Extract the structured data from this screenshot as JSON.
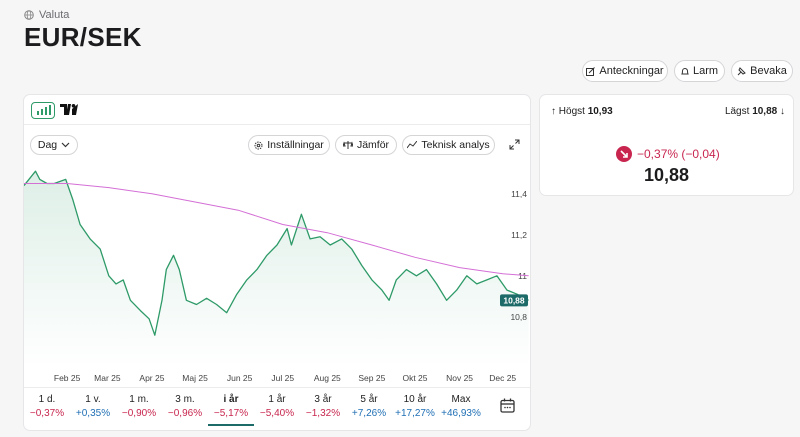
{
  "header": {
    "category": "Valuta",
    "title": "EUR/SEK"
  },
  "actions": [
    "Anteckningar",
    "Larm",
    "Bevaka"
  ],
  "toolbar": {
    "interval": "Dag",
    "buttons": [
      "Inställningar",
      "Jämför",
      "Teknisk analys"
    ]
  },
  "stats": {
    "high_label": "Högst",
    "high": "10,93",
    "low_label": "Lägst",
    "low": "10,88",
    "change": "−0,37% (−0,04)",
    "price": "10,88"
  },
  "chart_data": {
    "type": "line",
    "x": [
      1,
      9,
      12,
      17,
      22,
      30,
      35,
      40,
      47,
      54,
      60,
      65,
      70,
      75,
      82,
      88,
      92,
      97,
      100,
      105,
      109,
      114,
      121,
      128,
      135,
      142,
      149,
      156,
      163,
      170,
      177,
      184,
      187,
      194,
      200,
      207,
      214,
      222,
      229,
      236,
      243,
      250,
      255,
      260,
      267,
      274,
      281,
      288,
      295,
      302,
      309,
      316,
      323,
      330,
      337,
      344,
      349,
      352
    ],
    "series": [
      {
        "color": "#2e9a68",
        "values": [
          11.44,
          11.51,
          11.47,
          11.45,
          11.45,
          11.47,
          11.37,
          11.25,
          11.18,
          11.13,
          11.0,
          10.96,
          10.98,
          10.88,
          10.83,
          10.79,
          10.71,
          10.88,
          11.03,
          11.1,
          11.03,
          10.88,
          10.86,
          10.89,
          10.86,
          10.82,
          10.91,
          10.98,
          11.03,
          11.1,
          11.15,
          11.23,
          11.15,
          11.3,
          11.18,
          11.19,
          11.15,
          11.18,
          11.13,
          11.05,
          10.98,
          10.93,
          10.88,
          10.98,
          11.03,
          11.0,
          11.03,
          10.96,
          10.88,
          10.93,
          11.0,
          10.96,
          10.98,
          11.0,
          10.93,
          10.91,
          10.89,
          10.88
        ]
      },
      {
        "color": "#d46fd6",
        "x": [
          1,
          31,
          60,
          90,
          120,
          150,
          181,
          212,
          243,
          273,
          304,
          334,
          352
        ],
        "values": [
          11.45,
          11.45,
          11.43,
          11.4,
          11.36,
          11.32,
          11.25,
          11.21,
          11.15,
          11.09,
          11.04,
          11.01,
          11.0
        ]
      }
    ],
    "current_label": {
      "value": 10.88,
      "label": "10,88"
    },
    "xlim": [
      1,
      353
    ],
    "xticks": [
      {
        "value": 31,
        "label": "Feb 25"
      },
      {
        "value": 59,
        "label": "Mar 25"
      },
      {
        "value": 90,
        "label": "Apr 25"
      },
      {
        "value": 120,
        "label": "Maj 25"
      },
      {
        "value": 151,
        "label": "Jun 25"
      },
      {
        "value": 181,
        "label": "Jul 25"
      },
      {
        "value": 212,
        "label": "Aug 25"
      },
      {
        "value": 243,
        "label": "Sep 25"
      },
      {
        "value": 273,
        "label": "Okt 25"
      },
      {
        "value": 304,
        "label": "Nov 25"
      },
      {
        "value": 334,
        "label": "Dec 25"
      }
    ],
    "ylim": [
      10.55,
      11.55
    ],
    "yticks": [
      {
        "value": 11.4,
        "label": "11,4"
      },
      {
        "value": 11.2,
        "label": "11,2"
      },
      11,
      {
        "value": 10.8,
        "label": "10,8"
      }
    ],
    "grid": false
  },
  "periods": [
    {
      "label": "1 d.",
      "change": "−0,37%"
    },
    {
      "label": "1 v.",
      "change": "+0,35%"
    },
    {
      "label": "1 m.",
      "change": "−0,90%"
    },
    {
      "label": "3 m.",
      "change": "−0,96%"
    },
    {
      "label": "i år",
      "change": "−5,17%"
    },
    {
      "label": "1 år",
      "change": "−5,40%"
    },
    {
      "label": "3 år",
      "change": "−1,32%"
    },
    {
      "label": "5 år",
      "change": "+7,26%"
    },
    {
      "label": "10 år",
      "change": "+17,27%"
    },
    {
      "label": "Max",
      "change": "+46,93%"
    }
  ],
  "selected_period": 4
}
